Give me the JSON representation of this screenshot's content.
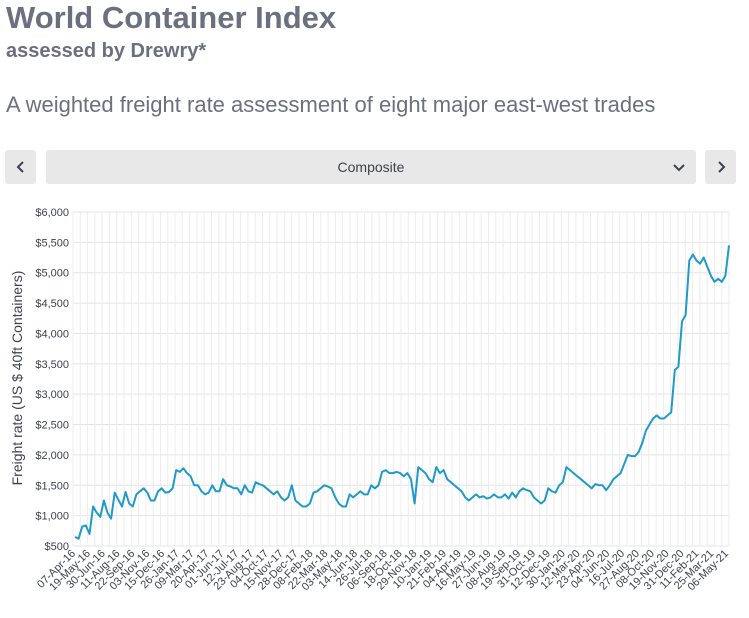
{
  "header": {
    "title": "World Container Index",
    "subtitle": "assessed by Drewry*",
    "description": "A weighted freight rate assessment of eight major east-west trades"
  },
  "controls": {
    "prev_icon": "chevron-left-icon",
    "next_icon": "chevron-right-icon",
    "selected_route": "Composite",
    "dropdown_icon": "chevron-down-icon"
  },
  "chart_data": {
    "type": "line",
    "title": "World Container Index",
    "ylabel": "Freight rate (US $ 40ft Containers)",
    "xlabel": "",
    "ylim": [
      500,
      6000
    ],
    "ytick_labels": [
      "$500",
      "$1,000",
      "$1,500",
      "$2,000",
      "$2,500",
      "$3,000",
      "$3,500",
      "$4,000",
      "$4,500",
      "$5,000",
      "$5,500",
      "$6,000"
    ],
    "ytick_values": [
      500,
      1000,
      1500,
      2000,
      2500,
      3000,
      3500,
      4000,
      4500,
      5000,
      5500,
      6000
    ],
    "xtick_labels": [
      "07-Apr-16",
      "19-May-16",
      "30-Jun-16",
      "11-Aug-16",
      "22-Sep-16",
      "03-Nov-16",
      "15-Dec-16",
      "26-Jan-17",
      "09-Mar-17",
      "20-Apr-17",
      "01-Jun-17",
      "12-Jul-17",
      "23-Aug-17",
      "04-Oct-17",
      "15-Nov-17",
      "28-Dec-17",
      "08-Feb-18",
      "22-Mar-18",
      "03-May-18",
      "14-Jun-18",
      "26-Jul-18",
      "06-Sep-18",
      "18-Oct-18",
      "29-Nov-18",
      "10-Jan-19",
      "21-Feb-19",
      "04-Apr-19",
      "16-May-19",
      "27-Jun-19",
      "08-Aug-19",
      "19-Sep-19",
      "31-Oct-19",
      "12-Dec-19",
      "30-Jan-20",
      "12-Mar-20",
      "23-Apr-20",
      "04-Jun-20",
      "16-Jul-20",
      "27-Aug-20",
      "08-Oct-20",
      "19-Nov-20",
      "31-Dec-20",
      "11-Feb-21",
      "25-Mar-21",
      "06-May-21"
    ],
    "grid": true,
    "legend": "none",
    "series": [
      {
        "name": "Composite",
        "color": "#1f9ac9",
        "values": [
          650,
          620,
          820,
          840,
          700,
          1150,
          1050,
          980,
          1250,
          1050,
          950,
          1380,
          1260,
          1150,
          1390,
          1200,
          1150,
          1350,
          1400,
          1450,
          1380,
          1250,
          1250,
          1400,
          1450,
          1380,
          1390,
          1450,
          1750,
          1720,
          1780,
          1700,
          1650,
          1500,
          1500,
          1400,
          1350,
          1380,
          1500,
          1400,
          1400,
          1600,
          1500,
          1480,
          1450,
          1450,
          1350,
          1500,
          1400,
          1380,
          1550,
          1520,
          1500,
          1450,
          1400,
          1350,
          1400,
          1300,
          1250,
          1300,
          1500,
          1250,
          1200,
          1150,
          1150,
          1200,
          1380,
          1400,
          1450,
          1500,
          1480,
          1450,
          1300,
          1200,
          1150,
          1150,
          1350,
          1300,
          1350,
          1400,
          1350,
          1350,
          1500,
          1450,
          1500,
          1720,
          1750,
          1700,
          1700,
          1720,
          1700,
          1650,
          1700,
          1600,
          1200,
          1800,
          1750,
          1700,
          1600,
          1550,
          1800,
          1700,
          1750,
          1600,
          1550,
          1500,
          1450,
          1400,
          1300,
          1250,
          1300,
          1350,
          1300,
          1320,
          1280,
          1300,
          1350,
          1300,
          1300,
          1350,
          1280,
          1380,
          1300,
          1400,
          1450,
          1420,
          1400,
          1300,
          1250,
          1200,
          1250,
          1450,
          1400,
          1380,
          1500,
          1550,
          1800,
          1750,
          1700,
          1650,
          1600,
          1550,
          1500,
          1450,
          1520,
          1500,
          1500,
          1420,
          1500,
          1600,
          1650,
          1700,
          1850,
          2000,
          1980,
          1980,
          2050,
          2200,
          2400,
          2500,
          2600,
          2650,
          2600,
          2600,
          2650,
          2700,
          3400,
          3450,
          4200,
          4300,
          5200,
          5300,
          5200,
          5150,
          5250,
          5100,
          4950,
          4850,
          4900,
          4850,
          4950,
          5450
        ]
      }
    ]
  }
}
